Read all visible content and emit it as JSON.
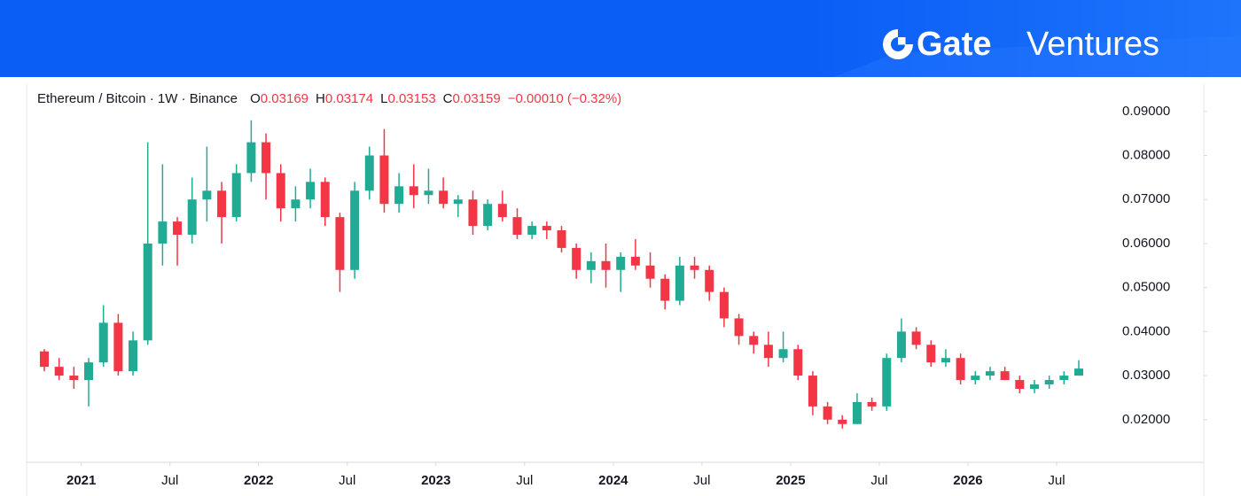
{
  "logo": {
    "brand": "Gate",
    "suffix": "Ventures"
  },
  "chart_data": {
    "type": "candlestick",
    "title": "Ethereum / Bitcoin · 1W · Binance",
    "ohlc": [
      {
        "label": "O",
        "value": 0.03169
      },
      {
        "label": "H",
        "value": 0.03174
      },
      {
        "label": "L",
        "value": 0.03153
      },
      {
        "label": "C",
        "value": 0.03159
      }
    ],
    "change": "−0.00010 (−0.32%)",
    "colors": {
      "up": "#22ab94",
      "down": "#f23645"
    },
    "x": [
      "2020-10",
      "2020-11",
      "2020-12",
      "2021-01",
      "2021-02",
      "2021-03",
      "2021-04",
      "2021-05",
      "2021-06",
      "2021-07",
      "2021-08",
      "2021-09",
      "2021-10",
      "2021-11",
      "2021-12",
      "2022-01",
      "2022-02",
      "2022-03",
      "2022-04",
      "2022-05",
      "2022-06",
      "2022-07",
      "2022-08",
      "2022-09",
      "2022-10",
      "2022-11",
      "2022-12",
      "2023-01",
      "2023-02",
      "2023-03",
      "2023-04",
      "2023-05",
      "2023-06",
      "2023-07",
      "2023-08",
      "2023-09",
      "2023-10",
      "2023-11",
      "2023-12",
      "2024-01",
      "2024-02",
      "2024-03",
      "2024-04",
      "2024-05",
      "2024-06",
      "2024-07",
      "2024-08",
      "2024-09",
      "2024-10",
      "2024-11",
      "2024-12",
      "2025-01",
      "2025-02",
      "2025-03",
      "2025-04",
      "2025-05",
      "2025-06",
      "2025-07",
      "2025-08",
      "2025-09",
      "2025-10",
      "2025-11",
      "2025-12",
      "2026-01",
      "2026-02",
      "2026-03",
      "2026-04",
      "2026-05",
      "2026-06",
      "2026-07",
      "2026-08"
    ],
    "open": [
      0.0355,
      0.032,
      0.03,
      0.029,
      0.033,
      0.042,
      0.031,
      0.038,
      0.06,
      0.065,
      0.062,
      0.07,
      0.072,
      0.066,
      0.076,
      0.083,
      0.076,
      0.068,
      0.07,
      0.074,
      0.066,
      0.054,
      0.072,
      0.08,
      0.069,
      0.073,
      0.071,
      0.072,
      0.069,
      0.07,
      0.064,
      0.069,
      0.066,
      0.062,
      0.064,
      0.063,
      0.059,
      0.054,
      0.056,
      0.054,
      0.057,
      0.055,
      0.052,
      0.047,
      0.055,
      0.054,
      0.049,
      0.043,
      0.039,
      0.037,
      0.034,
      0.036,
      0.03,
      0.023,
      0.02,
      0.019,
      0.024,
      0.023,
      0.034,
      0.04,
      0.037,
      0.033,
      0.034,
      0.029,
      0.03,
      0.031,
      0.029,
      0.027,
      0.028,
      0.029,
      0.03
    ],
    "high": [
      0.036,
      0.034,
      0.032,
      0.034,
      0.046,
      0.044,
      0.04,
      0.083,
      0.078,
      0.066,
      0.075,
      0.082,
      0.074,
      0.078,
      0.088,
      0.085,
      0.078,
      0.073,
      0.077,
      0.075,
      0.067,
      0.074,
      0.082,
      0.086,
      0.076,
      0.078,
      0.077,
      0.075,
      0.071,
      0.072,
      0.07,
      0.072,
      0.068,
      0.065,
      0.065,
      0.064,
      0.06,
      0.058,
      0.06,
      0.058,
      0.061,
      0.058,
      0.053,
      0.057,
      0.057,
      0.055,
      0.05,
      0.044,
      0.04,
      0.04,
      0.04,
      0.037,
      0.031,
      0.024,
      0.021,
      0.026,
      0.025,
      0.035,
      0.043,
      0.041,
      0.038,
      0.036,
      0.035,
      0.031,
      0.032,
      0.032,
      0.03,
      0.029,
      0.03,
      0.031,
      0.0335
    ],
    "low": [
      0.031,
      0.029,
      0.027,
      0.023,
      0.032,
      0.03,
      0.03,
      0.037,
      0.055,
      0.055,
      0.06,
      0.065,
      0.06,
      0.065,
      0.074,
      0.07,
      0.065,
      0.065,
      0.068,
      0.064,
      0.049,
      0.052,
      0.07,
      0.067,
      0.067,
      0.068,
      0.069,
      0.068,
      0.066,
      0.062,
      0.063,
      0.065,
      0.061,
      0.061,
      0.061,
      0.058,
      0.052,
      0.051,
      0.05,
      0.049,
      0.054,
      0.05,
      0.045,
      0.046,
      0.052,
      0.047,
      0.041,
      0.037,
      0.035,
      0.032,
      0.033,
      0.029,
      0.021,
      0.019,
      0.018,
      0.019,
      0.022,
      0.022,
      0.033,
      0.036,
      0.032,
      0.032,
      0.028,
      0.028,
      0.029,
      0.029,
      0.026,
      0.026,
      0.027,
      0.028,
      0.03
    ],
    "close": [
      0.032,
      0.03,
      0.029,
      0.033,
      0.042,
      0.031,
      0.038,
      0.06,
      0.065,
      0.062,
      0.07,
      0.072,
      0.066,
      0.076,
      0.083,
      0.076,
      0.068,
      0.07,
      0.074,
      0.066,
      0.054,
      0.072,
      0.08,
      0.069,
      0.073,
      0.071,
      0.072,
      0.069,
      0.07,
      0.064,
      0.069,
      0.066,
      0.062,
      0.064,
      0.063,
      0.059,
      0.054,
      0.056,
      0.054,
      0.057,
      0.055,
      0.052,
      0.047,
      0.055,
      0.054,
      0.049,
      0.043,
      0.039,
      0.037,
      0.034,
      0.036,
      0.03,
      0.023,
      0.02,
      0.019,
      0.024,
      0.023,
      0.034,
      0.04,
      0.037,
      0.033,
      0.034,
      0.029,
      0.03,
      0.031,
      0.029,
      0.027,
      0.028,
      0.029,
      0.03,
      0.0316
    ],
    "xlim": [
      "2020-09",
      "2026-10"
    ],
    "xticks": [
      {
        "value": "2021-01",
        "label": "2021"
      },
      {
        "value": "2021-07",
        "label": "Jul"
      },
      {
        "value": "2022-01",
        "label": "2022"
      },
      {
        "value": "2022-07",
        "label": "Jul"
      },
      {
        "value": "2023-01",
        "label": "2023"
      },
      {
        "value": "2023-07",
        "label": "Jul"
      },
      {
        "value": "2024-01",
        "label": "2024"
      },
      {
        "value": "2024-07",
        "label": "Jul"
      },
      {
        "value": "2025-01",
        "label": "2025"
      },
      {
        "value": "2025-07",
        "label": "Jul"
      },
      {
        "value": "2026-01",
        "label": "2026"
      },
      {
        "value": "2026-07",
        "label": "Jul"
      }
    ],
    "ylim": [
      0.0103,
      0.0962
    ],
    "yticks": [
      {
        "value": 0.02,
        "label": "0.02000"
      },
      {
        "value": 0.03,
        "label": "0.03000"
      },
      {
        "value": 0.04,
        "label": "0.04000"
      },
      {
        "value": 0.05,
        "label": "0.05000"
      },
      {
        "value": 0.06,
        "label": "0.06000"
      },
      {
        "value": 0.07,
        "label": "0.07000"
      },
      {
        "value": 0.08,
        "label": "0.08000"
      },
      {
        "value": 0.09,
        "label": "0.09000"
      }
    ]
  }
}
